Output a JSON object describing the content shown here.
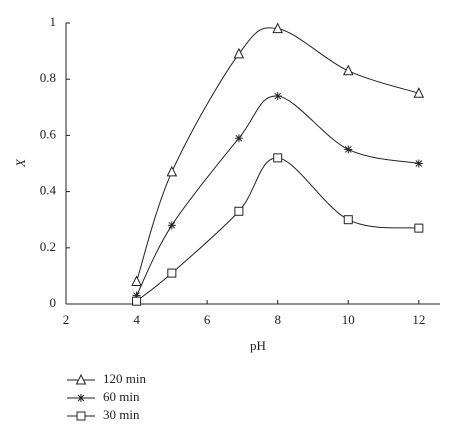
{
  "chart_data": {
    "type": "line",
    "x_label": "pH",
    "y_label": "X",
    "x": [
      4,
      5,
      6.9,
      8,
      10,
      12
    ],
    "series": [
      {
        "name": "120 min",
        "color": "#222222",
        "marker": "triangle",
        "values": [
          0.08,
          0.47,
          0.89,
          0.98,
          0.83,
          0.75
        ]
      },
      {
        "name": "60 min",
        "color": "#222222",
        "marker": "asterisk",
        "values": [
          0.03,
          0.28,
          0.59,
          0.74,
          0.55,
          0.5
        ]
      },
      {
        "name": "30 min",
        "color": "#222222",
        "marker": "square",
        "values": [
          0.01,
          0.11,
          0.33,
          0.52,
          0.3,
          0.27
        ]
      }
    ],
    "xlim": [
      2,
      12.6
    ],
    "xticks": [
      2,
      4,
      6,
      8,
      10,
      12
    ],
    "ylim": [
      0,
      1
    ],
    "yticks": [
      0,
      0.2,
      0.4,
      0.6,
      0.8,
      1
    ],
    "grid": false,
    "legend": "below"
  }
}
